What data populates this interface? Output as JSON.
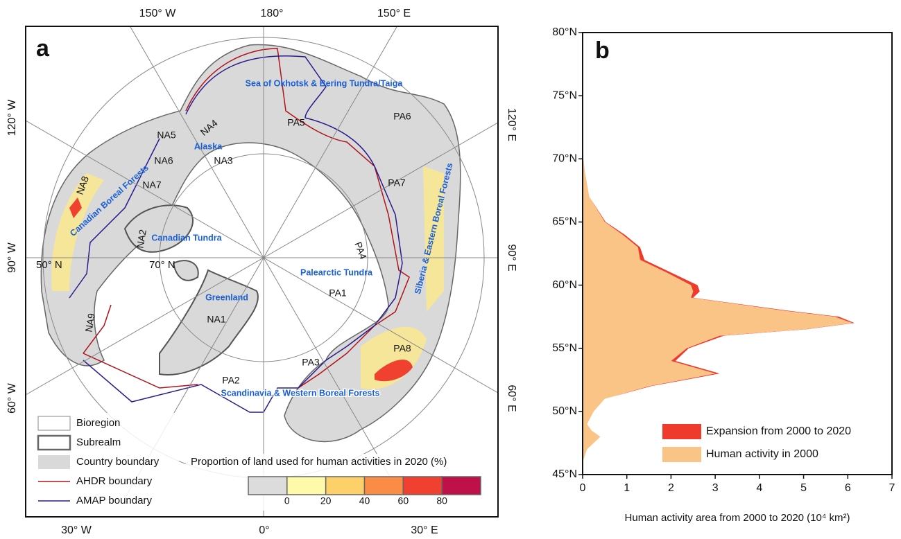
{
  "map": {
    "panel_label": "a",
    "longitude_labels": [
      "150° W",
      "180°",
      "150° E",
      "120° W",
      "120° E",
      "90° W",
      "90° E",
      "60° W",
      "60° E",
      "30° W",
      "0°",
      "30° E"
    ],
    "latitude_labels": [
      "50° N",
      "70° N"
    ],
    "regions": [
      "Sea of Okhotsk & Bering Tundra/Taiga",
      "Alaska",
      "Canadian Boreal Forests",
      "Canadian Tundra",
      "Greenland",
      "Palearctic Tundra",
      "Siberia & Eastern Boreal Forests",
      "Scandinavia & Western Boreal Forests"
    ],
    "codes": [
      "NA1",
      "NA2",
      "NA3",
      "NA4",
      "NA5",
      "NA6",
      "NA7",
      "NA8",
      "NA9",
      "PA1",
      "PA2",
      "PA3",
      "PA4",
      "PA5",
      "PA6",
      "PA7",
      "PA8"
    ],
    "legend": [
      "Bioregion",
      "Subrealm",
      "Country boundary",
      "AHDR boundary",
      "AMAP boundary"
    ],
    "colorbar": {
      "title": "Proportion of land used for human activities in 2020 (%)",
      "ticks": [
        0,
        20,
        40,
        60,
        80
      ],
      "colors": [
        "#dcdcdc",
        "#fffaaa",
        "#fdd06a",
        "#fb8c45",
        "#f04030",
        "#c0104a"
      ]
    }
  },
  "chart_data": {
    "type": "area",
    "orientation": "horizontal",
    "panel_label": "b",
    "x_label": "Human activity area from 2000 to 2020 (10⁴ km²)",
    "y": [
      46,
      47,
      48,
      48.5,
      49,
      50,
      51,
      52,
      53,
      54,
      55,
      56,
      56.5,
      57,
      57.5,
      58,
      59,
      59.5,
      60,
      61,
      62,
      63,
      64,
      65,
      67,
      69,
      70.5
    ],
    "series": [
      {
        "name": "Human activity in 2000",
        "color": "#fbc487",
        "values": [
          0,
          0.1,
          0.4,
          0.2,
          0.1,
          0.25,
          0.5,
          1.5,
          3.0,
          2.0,
          2.35,
          3.1,
          5.0,
          6.1,
          5.7,
          4.5,
          2.45,
          2.5,
          2.45,
          1.9,
          1.3,
          1.25,
          0.9,
          0.5,
          0.15,
          0.05,
          0
        ]
      },
      {
        "name": "Expansion from 2000 to 2020",
        "color": "#ef3b2c",
        "values": [
          0,
          0,
          0,
          0,
          0,
          0,
          0,
          0.05,
          0.1,
          0.1,
          0.05,
          0.1,
          0.05,
          0.05,
          0.1,
          0.1,
          0.05,
          0.15,
          0.15,
          0.1,
          0.1,
          0.05,
          0.05,
          0.02,
          0,
          0,
          0
        ]
      }
    ],
    "xlim": [
      0,
      7
    ],
    "xticks": [
      0,
      1,
      2,
      3,
      4,
      5,
      6,
      7
    ],
    "ylim": [
      45,
      80
    ],
    "yticks": [
      {
        "value": 45,
        "label": "45°N"
      },
      {
        "value": 50,
        "label": "50°N"
      },
      {
        "value": 55,
        "label": "55°N"
      },
      {
        "value": 60,
        "label": "60°N"
      },
      {
        "value": 65,
        "label": "65°N"
      },
      {
        "value": 70,
        "label": "70°N"
      },
      {
        "value": 75,
        "label": "75°N"
      },
      {
        "value": 80,
        "label": "80°N"
      }
    ],
    "legend": "lower right"
  }
}
